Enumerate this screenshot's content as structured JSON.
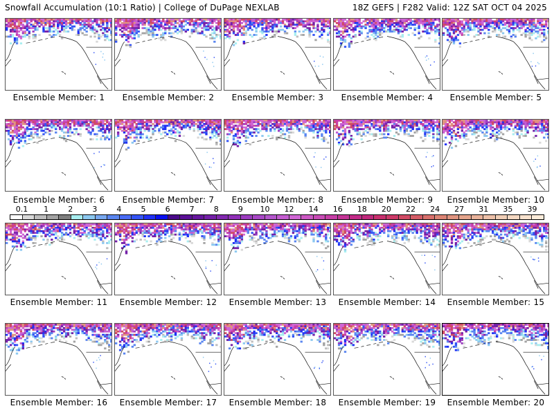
{
  "header": {
    "title_left": "Snowfall Accumulation (10:1 Ratio) | College of DuPage NEXLAB",
    "title_right": "18Z GEFS | F282 Valid: 12Z SAT OCT 04 2025"
  },
  "panels": [
    {
      "label": "Ensemble Member: 1",
      "member": 1
    },
    {
      "label": "Ensemble Member: 2",
      "member": 2
    },
    {
      "label": "Ensemble Member: 3",
      "member": 3
    },
    {
      "label": "Ensemble Member: 4",
      "member": 4
    },
    {
      "label": "Ensemble Member: 5",
      "member": 5
    },
    {
      "label": "Ensemble Member: 6",
      "member": 6
    },
    {
      "label": "Ensemble Member: 7",
      "member": 7
    },
    {
      "label": "Ensemble Member: 8",
      "member": 8
    },
    {
      "label": "Ensemble Member: 9",
      "member": 9
    },
    {
      "label": "Ensemble Member: 10",
      "member": 10
    },
    {
      "label": "Ensemble Member: 11",
      "member": 11
    },
    {
      "label": "Ensemble Member: 12",
      "member": 12
    },
    {
      "label": "Ensemble Member: 13",
      "member": 13
    },
    {
      "label": "Ensemble Member: 14",
      "member": 14
    },
    {
      "label": "Ensemble Member: 15",
      "member": 15
    },
    {
      "label": "Ensemble Member: 16",
      "member": 16
    },
    {
      "label": "Ensemble Member: 17",
      "member": 17
    },
    {
      "label": "Ensemble Member: 18",
      "member": 18
    },
    {
      "label": "Ensemble Member: 19",
      "member": 19
    },
    {
      "label": "Ensemble Member: 20",
      "member": 20
    }
  ],
  "colorbar": {
    "tick_labels": [
      "0.1",
      "1",
      "2",
      "3",
      "4",
      "5",
      "6",
      "7",
      "8",
      "9",
      "10",
      "12",
      "14",
      "16",
      "18",
      "20",
      "22",
      "24",
      "27",
      "31",
      "35",
      "39"
    ],
    "colors": [
      "#ffffff",
      "#d9d9d9",
      "#bdbdbd",
      "#a3a3a3",
      "#7f7f7f",
      "#a8eef0",
      "#8cc8f0",
      "#78a8f0",
      "#5a86f0",
      "#4a6cf5",
      "#3454f5",
      "#2030f5",
      "#0a10f0",
      "#4a0a8a",
      "#5a1096",
      "#66169e",
      "#7420a8",
      "#8228b0",
      "#9030b8",
      "#9c3cc0",
      "#a848c6",
      "#b456cc",
      "#c45cd0",
      "#d066d4",
      "#cc58c4",
      "#c84cb6",
      "#c63ea6",
      "#c43496",
      "#c22a88",
      "#c0287c",
      "#c8306e",
      "#cc3a68",
      "#d04a64",
      "#d45c66",
      "#d8706c",
      "#dc8474",
      "#e09480",
      "#e4a48c",
      "#e8b29a",
      "#ecc0a8",
      "#f0ceb6",
      "#f4d8c2",
      "#f8e2ce",
      "#fcecda"
    ]
  }
}
